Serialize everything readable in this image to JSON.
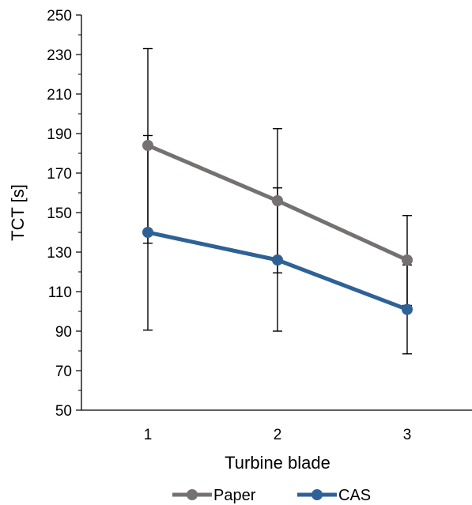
{
  "chart_data": {
    "type": "line",
    "title": "",
    "xlabel": "Turbine blade",
    "ylabel": "TCT [s]",
    "categories": [
      "1",
      "2",
      "3"
    ],
    "ylim": [
      50,
      250
    ],
    "yticks": [
      "50",
      "70",
      "90",
      "110",
      "130",
      "150",
      "170",
      "190",
      "210",
      "230",
      "250"
    ],
    "grid": false,
    "legend_position": "bottom",
    "series": [
      {
        "name": "Paper",
        "color": "#767171",
        "values": [
          184,
          156,
          126
        ],
        "error_upper": [
          233,
          192.5,
          148.5
        ],
        "error_lower": [
          134.5,
          119.5,
          103
        ]
      },
      {
        "name": "CAS",
        "color": "#2E6296",
        "values": [
          140,
          126,
          101
        ],
        "error_upper": [
          189,
          162.5,
          123.5
        ],
        "error_lower": [
          90.5,
          90,
          78.5
        ]
      }
    ]
  }
}
